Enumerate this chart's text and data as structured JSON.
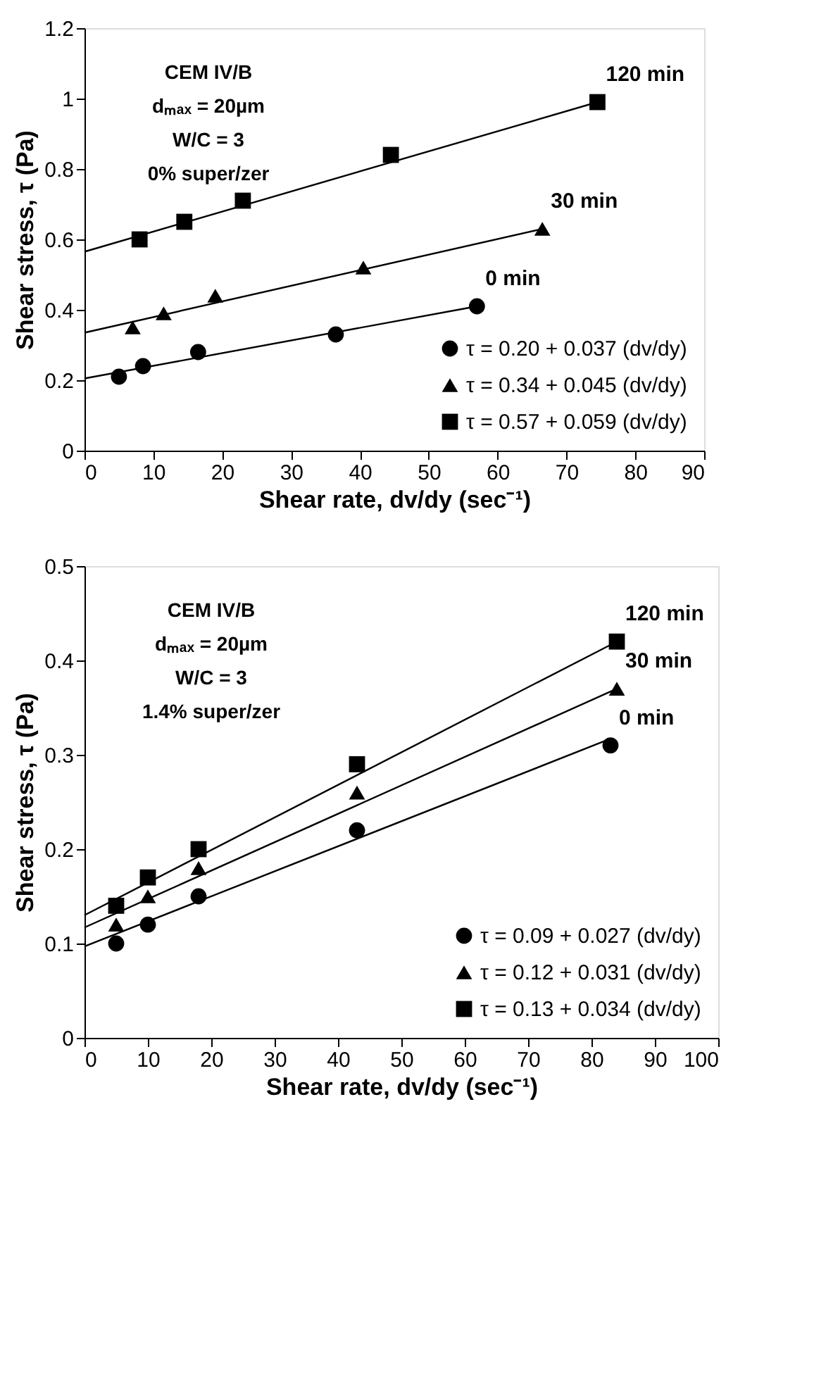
{
  "chart_data": [
    {
      "type": "scatter",
      "xlabel": "Shear rate, dv/dy (sec⁻¹)",
      "ylabel": "Shear stress, τ (Pa)",
      "xlim": [
        0,
        90
      ],
      "ylim": [
        0,
        1.2
      ],
      "xticks": [
        0,
        10,
        20,
        30,
        40,
        50,
        60,
        70,
        80,
        90
      ],
      "yticks": [
        0,
        0.2,
        0.4,
        0.6,
        0.8,
        1,
        1.2
      ],
      "legend": "bottom right",
      "grid": false,
      "annotations": [
        "CEM IV/B",
        "dₘₐₓ = 20µm",
        "W/C = 3",
        "0% super/zer",
        {
          "text": "120 min",
          "x": 74.5,
          "y": 0.99
        },
        {
          "text": "30 min",
          "x": 66.5,
          "y": 0.63
        },
        {
          "text": "0 min",
          "x": 57,
          "y": 0.41
        }
      ],
      "series": [
        {
          "name": "τ = 0.20 + 0.037 (dv/dy)",
          "marker": "circle",
          "color": "#000000",
          "x": [
            5,
            8.5,
            16.5,
            36.5,
            57
          ],
          "values": [
            0.21,
            0.24,
            0.28,
            0.33,
            0.41
          ]
        },
        {
          "name": "τ = 0.34 + 0.045 (dv/dy)",
          "marker": "triangle",
          "color": "#000000",
          "x": [
            7,
            11.5,
            19,
            40.5,
            66.5
          ],
          "values": [
            0.35,
            0.39,
            0.44,
            0.52,
            0.63
          ]
        },
        {
          "name": "τ = 0.57 + 0.059 (dv/dy)",
          "marker": "square",
          "color": "#000000",
          "x": [
            8,
            14.5,
            23,
            44.5,
            74.5
          ],
          "values": [
            0.6,
            0.65,
            0.71,
            0.84,
            0.99
          ]
        },
        {
          "type": "line",
          "color": "#000000",
          "x": [
            0,
            57
          ],
          "values": [
            0.205,
            0.41
          ]
        },
        {
          "type": "line",
          "color": "#000000",
          "x": [
            0,
            66.5
          ],
          "values": [
            0.335,
            0.63
          ]
        },
        {
          "type": "line",
          "color": "#000000",
          "x": [
            0,
            74.5
          ],
          "values": [
            0.565,
            0.99
          ]
        }
      ]
    },
    {
      "type": "scatter",
      "xlabel": "Shear rate, dv/dy (sec⁻¹)",
      "ylabel": "Shear stress, τ (Pa)",
      "xlim": [
        0,
        100
      ],
      "ylim": [
        0,
        0.5
      ],
      "xticks": [
        0,
        10,
        20,
        30,
        40,
        50,
        60,
        70,
        80,
        90,
        100
      ],
      "yticks": [
        0,
        0.1,
        0.2,
        0.3,
        0.4,
        0.5
      ],
      "legend": "bottom right",
      "grid": false,
      "annotations": [
        "CEM IV/B",
        "dₘₐₓ = 20µm",
        "W/C = 3",
        "1.4% super/zer",
        {
          "text": "120 min",
          "x": 84,
          "y": 0.42
        },
        {
          "text": "30 min",
          "x": 84,
          "y": 0.37
        },
        {
          "text": "0 min",
          "x": 83,
          "y": 0.31
        }
      ],
      "series": [
        {
          "name": "τ = 0.09 + 0.027 (dv/dy)",
          "marker": "circle",
          "color": "#000000",
          "x": [
            5,
            10,
            18,
            43,
            83
          ],
          "values": [
            0.1,
            0.12,
            0.15,
            0.22,
            0.31
          ]
        },
        {
          "name": "τ = 0.12 + 0.031 (dv/dy)",
          "marker": "triangle",
          "color": "#000000",
          "x": [
            5,
            10,
            18,
            43,
            84
          ],
          "values": [
            0.12,
            0.15,
            0.18,
            0.26,
            0.37
          ]
        },
        {
          "name": "τ = 0.13 + 0.034 (dv/dy)",
          "marker": "square",
          "color": "#000000",
          "x": [
            5,
            10,
            18,
            43,
            84
          ],
          "values": [
            0.14,
            0.17,
            0.2,
            0.29,
            0.42
          ]
        },
        {
          "type": "line",
          "color": "#000000",
          "x": [
            0,
            83
          ],
          "values": [
            0.097,
            0.317
          ]
        },
        {
          "type": "line",
          "color": "#000000",
          "x": [
            0,
            84
          ],
          "values": [
            0.117,
            0.37
          ]
        },
        {
          "type": "line",
          "color": "#000000",
          "x": [
            0,
            84
          ],
          "values": [
            0.13,
            0.42
          ]
        }
      ]
    }
  ]
}
